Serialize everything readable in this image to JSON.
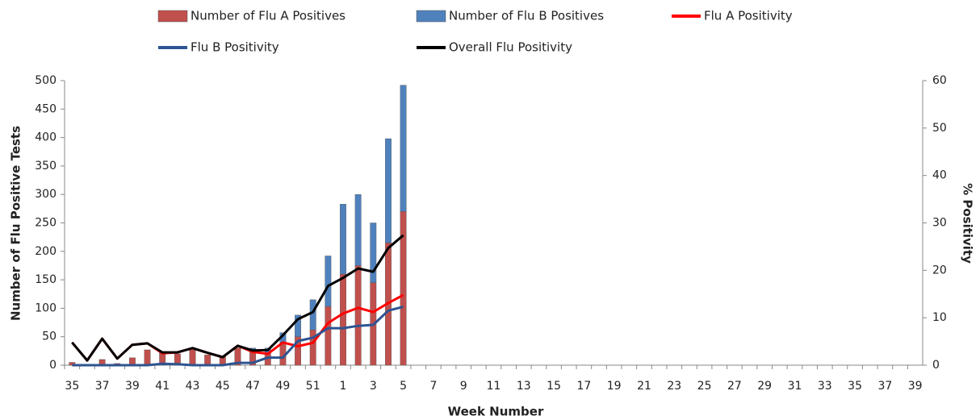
{
  "chart_data": {
    "type": "bar",
    "stacked": true,
    "y_label": "Number of Flu Positive Tests",
    "y2_label": "% Positivity",
    "x_label": "Week Number",
    "categories": [
      "35",
      null,
      "37",
      null,
      "39",
      null,
      "41",
      null,
      "43",
      null,
      "45",
      null,
      "47",
      null,
      "49",
      null,
      "51",
      null,
      "1",
      null,
      "3",
      null,
      "5",
      null,
      "7",
      null,
      "9",
      null,
      "11",
      null,
      "13",
      null,
      "15",
      null,
      "17",
      null,
      "19",
      null,
      "21",
      null,
      "23",
      null,
      "25",
      null,
      "27",
      null,
      "29",
      null,
      "31",
      null,
      "33",
      null,
      "35",
      null,
      "37",
      null,
      "39"
    ],
    "ylim": [
      0,
      500
    ],
    "yticks": [
      0,
      50,
      100,
      150,
      200,
      250,
      300,
      350,
      400,
      450,
      500
    ],
    "y2lim": [
      0,
      60
    ],
    "y2ticks": [
      0,
      10,
      20,
      30,
      40,
      50,
      60
    ],
    "grid": false,
    "series": [
      {
        "name": "Number of Flu A Positives",
        "kind": "bar",
        "color": "#c0504d",
        "values": [
          5,
          0,
          10,
          3,
          13,
          27,
          20,
          20,
          28,
          18,
          15,
          30,
          27,
          22,
          40,
          50,
          62,
          103,
          160,
          175,
          145,
          215,
          270,
          null,
          null,
          null,
          null,
          null,
          null,
          null,
          null,
          null,
          null,
          null,
          null,
          null,
          null,
          null,
          null,
          null,
          null,
          null,
          null,
          null,
          null,
          null,
          null,
          null,
          null,
          null,
          null,
          null,
          null,
          null,
          null,
          null,
          null
        ]
      },
      {
        "name": "Number of Flu B Positives",
        "kind": "bar",
        "color": "#4f81bd",
        "values": [
          0,
          0,
          0,
          0,
          0,
          0,
          2,
          0,
          0,
          0,
          0,
          0,
          3,
          8,
          17,
          38,
          53,
          89,
          123,
          125,
          105,
          183,
          222,
          null,
          null,
          null,
          null,
          null,
          null,
          null,
          null,
          null,
          null,
          null,
          null,
          null,
          null,
          null,
          null,
          null,
          null,
          null,
          null,
          null,
          null,
          null,
          null,
          null,
          null,
          null,
          null,
          null,
          null,
          null,
          null,
          null,
          null
        ]
      },
      {
        "name": "Flu A Positivity",
        "kind": "line",
        "axis": "y2",
        "color": "#ff0000",
        "values": [
          4.8,
          1.0,
          5.6,
          1.4,
          4.3,
          4.6,
          2.5,
          2.7,
          3.6,
          2.6,
          1.7,
          4.1,
          2.8,
          2.4,
          4.8,
          4.0,
          4.7,
          8.9,
          10.9,
          12.1,
          11.2,
          13.1,
          14.8,
          null,
          null,
          null,
          null,
          null,
          null,
          null,
          null,
          null,
          null,
          null,
          null,
          null,
          null,
          null,
          null,
          null,
          null,
          null,
          null,
          null,
          null,
          null,
          null,
          null,
          null,
          null,
          null,
          null,
          null,
          null,
          null,
          null,
          null
        ]
      },
      {
        "name": "Flu B Positivity",
        "kind": "line",
        "axis": "y2",
        "color": "#2e5491",
        "values": [
          0,
          0,
          0,
          0,
          0,
          0,
          0.3,
          0.2,
          0,
          0,
          0,
          0.5,
          0.5,
          1.6,
          1.6,
          5.1,
          5.8,
          7.8,
          7.8,
          8.3,
          8.5,
          11.5,
          12.3,
          null,
          null,
          null,
          null,
          null,
          null,
          null,
          null,
          null,
          null,
          null,
          null,
          null,
          null,
          null,
          null,
          null,
          null,
          null,
          null,
          null,
          null,
          null,
          null,
          null,
          null,
          null,
          null,
          null,
          null,
          null,
          null,
          null,
          null
        ]
      },
      {
        "name": "Overall Flu Positivity",
        "kind": "line",
        "axis": "y2",
        "color": "#000000",
        "values": [
          4.8,
          1.0,
          5.6,
          1.4,
          4.3,
          4.6,
          2.7,
          2.7,
          3.6,
          2.6,
          1.7,
          4.1,
          3.1,
          3.2,
          6.3,
          9.7,
          11.2,
          16.7,
          18.4,
          20.4,
          19.7,
          24.7,
          27.4,
          null,
          null,
          null,
          null,
          null,
          null,
          null,
          null,
          null,
          null,
          null,
          null,
          null,
          null,
          null,
          null,
          null,
          null,
          null,
          null,
          null,
          null,
          null,
          null,
          null,
          null,
          null,
          null,
          null,
          null,
          null,
          null,
          null,
          null
        ]
      }
    ]
  }
}
